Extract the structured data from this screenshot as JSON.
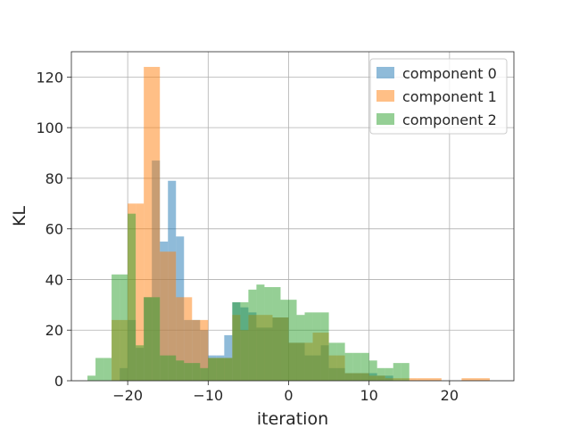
{
  "chart_data": {
    "type": "bar",
    "title": "",
    "xlabel": "iteration",
    "ylabel": "KL",
    "xlim": [
      -27,
      28
    ],
    "ylim": [
      0,
      130
    ],
    "xticks": [
      -20,
      -10,
      0,
      10,
      20
    ],
    "yticks": [
      0,
      20,
      40,
      60,
      80,
      100,
      120
    ],
    "grid": true,
    "legend_placement": "top-right",
    "bar_alpha": 0.5,
    "series": [
      {
        "name": "component 0",
        "color": "#1f77b4",
        "bins": [
          [
            -21.0,
            -20.0,
            5
          ],
          [
            -20.0,
            -19.0,
            24
          ],
          [
            -19.0,
            -18.0,
            13
          ],
          [
            -18.0,
            -17.0,
            33
          ],
          [
            -17.0,
            -16.0,
            87
          ],
          [
            -16.0,
            -15.0,
            55
          ],
          [
            -15.0,
            -14.0,
            79
          ],
          [
            -14.0,
            -13.0,
            57
          ],
          [
            -13.0,
            -12.0,
            24
          ],
          [
            -12.0,
            -11.0,
            24
          ],
          [
            -11.0,
            -10.0,
            20
          ],
          [
            -10.0,
            -9.0,
            10
          ],
          [
            -9.0,
            -8.0,
            10
          ],
          [
            -8.0,
            -7.0,
            18
          ],
          [
            -7.0,
            -6.0,
            31
          ],
          [
            -6.0,
            -5.0,
            29
          ],
          [
            -5.0,
            -4.0,
            27
          ],
          [
            -4.0,
            -3.0,
            21
          ],
          [
            -3.0,
            -2.0,
            21
          ],
          [
            -2.0,
            -1.0,
            25
          ],
          [
            -1.0,
            0.0,
            25
          ],
          [
            0.0,
            1.0,
            15
          ],
          [
            1.0,
            2.0,
            15
          ],
          [
            2.0,
            3.0,
            10
          ],
          [
            3.0,
            4.0,
            10
          ],
          [
            4.0,
            5.0,
            14
          ],
          [
            5.0,
            6.0,
            5
          ],
          [
            6.0,
            7.0,
            5
          ],
          [
            7.0,
            8.0,
            3
          ],
          [
            8.0,
            9.0,
            3
          ],
          [
            9.0,
            10.0,
            3
          ],
          [
            10.0,
            11.0,
            3
          ],
          [
            11.0,
            12.0,
            2
          ],
          [
            12.0,
            13.0,
            2
          ]
        ]
      },
      {
        "name": "component 1",
        "color": "#ff7f0e",
        "bins": [
          [
            -22.0,
            -21.0,
            24
          ],
          [
            -21.0,
            -20.0,
            24
          ],
          [
            -20.0,
            -19.0,
            70
          ],
          [
            -19.0,
            -18.0,
            70
          ],
          [
            -18.0,
            -16.0,
            124
          ],
          [
            -16.0,
            -15.0,
            51
          ],
          [
            -15.0,
            -14.0,
            51
          ],
          [
            -14.0,
            -13.0,
            33
          ],
          [
            -13.0,
            -12.0,
            33
          ],
          [
            -12.0,
            -10.0,
            24
          ],
          [
            -10.0,
            -7.0,
            9
          ],
          [
            -7.0,
            -6.0,
            26
          ],
          [
            -6.0,
            -5.0,
            20
          ],
          [
            -5.0,
            -2.0,
            26
          ],
          [
            -2.0,
            0.0,
            25
          ],
          [
            0.0,
            1.0,
            15
          ],
          [
            1.0,
            2.0,
            15
          ],
          [
            2.0,
            3.0,
            15
          ],
          [
            3.0,
            4.0,
            19
          ],
          [
            4.0,
            5.0,
            19
          ],
          [
            5.0,
            6.0,
            10
          ],
          [
            6.0,
            7.0,
            10
          ],
          [
            7.0,
            8.0,
            3
          ],
          [
            8.0,
            10.0,
            3
          ],
          [
            10.0,
            11.0,
            2
          ],
          [
            11.0,
            12.0,
            2
          ],
          [
            12.0,
            14.0,
            1
          ],
          [
            14.0,
            16.0,
            1
          ],
          [
            16.0,
            19.0,
            1
          ],
          [
            21.5,
            25.0,
            1
          ]
        ]
      },
      {
        "name": "component 2",
        "color": "#2ca02c",
        "bins": [
          [
            -25.0,
            -24.0,
            2
          ],
          [
            -24.0,
            -23.0,
            9
          ],
          [
            -23.0,
            -22.0,
            9
          ],
          [
            -22.0,
            -21.0,
            42
          ],
          [
            -21.0,
            -20.0,
            42
          ],
          [
            -20.0,
            -19.0,
            66
          ],
          [
            -19.0,
            -18.0,
            14
          ],
          [
            -18.0,
            -17.0,
            33
          ],
          [
            -17.0,
            -16.0,
            33
          ],
          [
            -16.0,
            -15.0,
            10
          ],
          [
            -15.0,
            -14.0,
            10
          ],
          [
            -14.0,
            -13.0,
            8
          ],
          [
            -13.0,
            -12.0,
            7
          ],
          [
            -12.0,
            -11.0,
            7
          ],
          [
            -11.0,
            -10.0,
            5
          ],
          [
            -10.0,
            -9.0,
            9
          ],
          [
            -9.0,
            -8.0,
            9
          ],
          [
            -8.0,
            -7.0,
            9
          ],
          [
            -7.0,
            -6.0,
            31
          ],
          [
            -6.0,
            -5.0,
            31
          ],
          [
            -5.0,
            -4.0,
            36
          ],
          [
            -4.0,
            -3.0,
            38
          ],
          [
            -3.0,
            -2.0,
            37
          ],
          [
            -2.0,
            -1.0,
            37
          ],
          [
            -1.0,
            0.0,
            32
          ],
          [
            0.0,
            1.0,
            32
          ],
          [
            1.0,
            2.0,
            26
          ],
          [
            2.0,
            3.0,
            27
          ],
          [
            3.0,
            4.0,
            27
          ],
          [
            4.0,
            5.0,
            27
          ],
          [
            5.0,
            6.0,
            15
          ],
          [
            6.0,
            7.0,
            15
          ],
          [
            7.0,
            8.0,
            11
          ],
          [
            8.0,
            9.0,
            11
          ],
          [
            9.0,
            10.0,
            11
          ],
          [
            10.0,
            11.0,
            8
          ],
          [
            11.0,
            12.0,
            5
          ],
          [
            12.0,
            13.0,
            5
          ],
          [
            13.0,
            14.0,
            7
          ],
          [
            14.0,
            15.0,
            7
          ]
        ]
      }
    ]
  }
}
